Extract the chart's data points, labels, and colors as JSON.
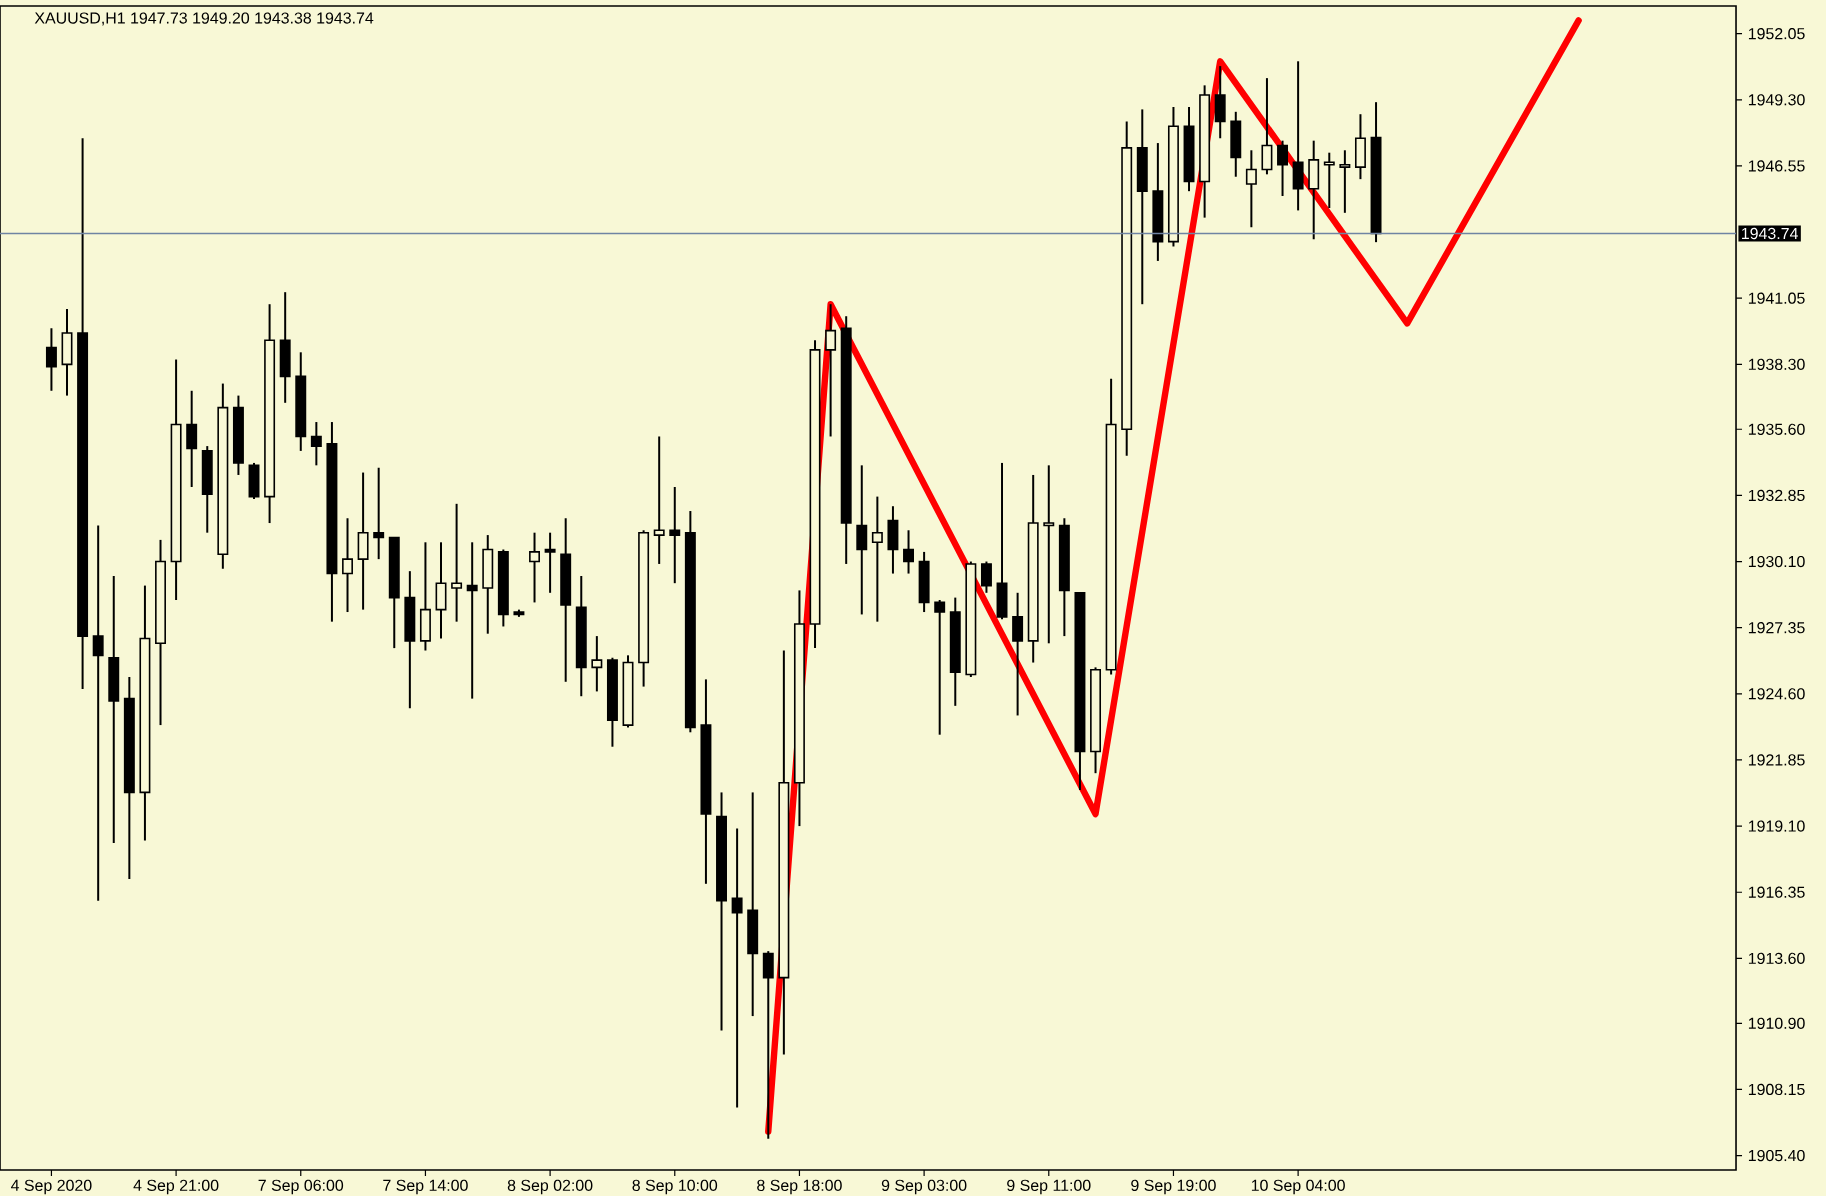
{
  "chart_data": {
    "type": "candlestick",
    "title": "XAUUSD,H1  1947.73 1949.20 1943.38 1943.74",
    "color": "#000000",
    "categories": [
      "4 Sep 2020",
      null,
      null,
      null,
      null,
      null,
      null,
      null,
      "4 Sep 21:00",
      null,
      null,
      null,
      null,
      null,
      null,
      null,
      "7 Sep 06:00",
      null,
      null,
      null,
      null,
      null,
      null,
      null,
      "7 Sep 14:00",
      null,
      null,
      null,
      null,
      null,
      null,
      null,
      "8 Sep 02:00",
      null,
      null,
      null,
      null,
      null,
      null,
      null,
      "8 Sep 10:00",
      null,
      null,
      null,
      null,
      null,
      null,
      null,
      "8 Sep 18:00",
      null,
      null,
      null,
      null,
      null,
      null,
      null,
      "9 Sep 03:00",
      null,
      null,
      null,
      null,
      null,
      null,
      null,
      "9 Sep 11:00",
      null,
      null,
      null,
      null,
      null,
      null,
      null,
      "9 Sep 19:00",
      null,
      null,
      null,
      null,
      null,
      null,
      null,
      "10 Sep 04:00",
      null,
      null,
      null,
      null,
      null,
      null,
      null,
      null,
      null,
      null,
      null,
      null,
      null,
      null,
      null,
      null,
      null,
      null,
      null,
      null,
      null,
      null,
      null,
      null,
      null,
      null,
      null,
      null
    ],
    "ohlc": [
      [
        1939.0,
        1939.8,
        1937.2,
        1938.2
      ],
      [
        1938.3,
        1940.6,
        1937.0,
        1939.6
      ],
      [
        1939.6,
        1947.7,
        1924.8,
        1927.0
      ],
      [
        1927.0,
        1931.6,
        1916.0,
        1926.2
      ],
      [
        1926.1,
        1929.5,
        1918.4,
        1924.3
      ],
      [
        1924.4,
        1925.3,
        1916.9,
        1920.5
      ],
      [
        1920.5,
        1929.1,
        1918.5,
        1926.9
      ],
      [
        1926.7,
        1931.0,
        1923.3,
        1930.1
      ],
      [
        1930.1,
        1938.5,
        1928.5,
        1935.8
      ],
      [
        1935.8,
        1937.2,
        1933.2,
        1934.8
      ],
      [
        1934.7,
        1934.9,
        1931.3,
        1932.9
      ],
      [
        1930.4,
        1937.5,
        1929.8,
        1936.5
      ],
      [
        1936.5,
        1937.0,
        1933.7,
        1934.2
      ],
      [
        1934.1,
        1934.2,
        1932.7,
        1932.8
      ],
      [
        1932.8,
        1940.8,
        1931.7,
        1939.3
      ],
      [
        1939.3,
        1941.3,
        1936.7,
        1937.8
      ],
      [
        1937.8,
        1938.8,
        1934.7,
        1935.3
      ],
      [
        1935.3,
        1935.9,
        1934.1,
        1934.9
      ],
      [
        1935.0,
        1935.9,
        1927.6,
        1929.6
      ],
      [
        1929.6,
        1931.9,
        1928.0,
        1930.2
      ],
      [
        1930.2,
        1933.8,
        1928.1,
        1931.3
      ],
      [
        1931.3,
        1934.0,
        1930.2,
        1931.1
      ],
      [
        1931.1,
        1931.1,
        1926.5,
        1928.6
      ],
      [
        1928.6,
        1929.7,
        1924.0,
        1926.8
      ],
      [
        1926.8,
        1930.9,
        1926.4,
        1928.1
      ],
      [
        1928.1,
        1930.9,
        1926.9,
        1929.2
      ],
      [
        1929.0,
        1932.5,
        1927.6,
        1929.2
      ],
      [
        1929.1,
        1930.9,
        1924.4,
        1928.9
      ],
      [
        1929.0,
        1931.2,
        1927.1,
        1930.6
      ],
      [
        1930.5,
        1930.6,
        1927.4,
        1927.9
      ],
      [
        1928.0,
        1928.1,
        1927.8,
        1927.9
      ],
      [
        1930.1,
        1931.3,
        1928.4,
        1930.5
      ],
      [
        1930.6,
        1931.3,
        1928.8,
        1930.5
      ],
      [
        1930.4,
        1931.9,
        1925.1,
        1928.3
      ],
      [
        1928.2,
        1929.5,
        1924.5,
        1925.7
      ],
      [
        1925.7,
        1927.0,
        1924.7,
        1926.0
      ],
      [
        1926.0,
        1926.1,
        1922.4,
        1923.5
      ],
      [
        1923.3,
        1926.2,
        1923.2,
        1925.9
      ],
      [
        1925.9,
        1931.4,
        1924.9,
        1931.3
      ],
      [
        1931.2,
        1935.3,
        1930.0,
        1931.4
      ],
      [
        1931.4,
        1933.2,
        1929.2,
        1931.2
      ],
      [
        1931.3,
        1932.2,
        1923.0,
        1923.2
      ],
      [
        1923.3,
        1925.2,
        1916.7,
        1919.6
      ],
      [
        1919.5,
        1920.5,
        1910.6,
        1916.0
      ],
      [
        1916.1,
        1919.0,
        1907.4,
        1915.5
      ],
      [
        1915.6,
        1920.5,
        1911.2,
        1913.8
      ],
      [
        1913.8,
        1913.9,
        1906.1,
        1912.8
      ],
      [
        1912.8,
        1926.4,
        1909.6,
        1920.9
      ],
      [
        1920.9,
        1928.9,
        1919.1,
        1927.5
      ],
      [
        1927.5,
        1939.3,
        1926.5,
        1938.9
      ],
      [
        1938.9,
        1940.8,
        1935.3,
        1939.7
      ],
      [
        1939.8,
        1940.3,
        1930.0,
        1931.7
      ],
      [
        1931.6,
        1934.1,
        1927.9,
        1930.6
      ],
      [
        1930.9,
        1932.8,
        1927.6,
        1931.3
      ],
      [
        1931.8,
        1932.4,
        1929.6,
        1930.6
      ],
      [
        1930.6,
        1931.4,
        1929.6,
        1930.1
      ],
      [
        1930.1,
        1930.5,
        1928.0,
        1928.4
      ],
      [
        1928.4,
        1928.5,
        1922.9,
        1928.0
      ],
      [
        1928.0,
        1928.6,
        1924.1,
        1925.5
      ],
      [
        1925.4,
        1930.1,
        1925.3,
        1930.0
      ],
      [
        1930.0,
        1930.1,
        1928.8,
        1929.1
      ],
      [
        1929.2,
        1934.2,
        1927.7,
        1927.8
      ],
      [
        1927.8,
        1928.8,
        1923.7,
        1926.8
      ],
      [
        1926.8,
        1933.7,
        1925.9,
        1931.7
      ],
      [
        1931.6,
        1934.1,
        1926.7,
        1931.7
      ],
      [
        1931.6,
        1931.9,
        1927.0,
        1928.9
      ],
      [
        1928.8,
        1928.8,
        1920.6,
        1922.2
      ],
      [
        1922.2,
        1925.7,
        1921.3,
        1925.6
      ],
      [
        1925.6,
        1937.7,
        1925.4,
        1935.8
      ],
      [
        1935.6,
        1948.4,
        1934.5,
        1947.3
      ],
      [
        1947.3,
        1948.9,
        1940.8,
        1945.5
      ],
      [
        1945.5,
        1947.5,
        1942.6,
        1943.4
      ],
      [
        1943.4,
        1949.0,
        1943.2,
        1948.2
      ],
      [
        1948.2,
        1949.0,
        1945.5,
        1945.9
      ],
      [
        1945.9,
        1949.9,
        1944.4,
        1949.5
      ],
      [
        1949.5,
        1950.7,
        1947.7,
        1948.4
      ],
      [
        1948.4,
        1948.8,
        1946.1,
        1946.9
      ],
      [
        1945.8,
        1947.2,
        1944.0,
        1946.4
      ],
      [
        1946.4,
        1950.2,
        1946.2,
        1947.4
      ],
      [
        1947.4,
        1947.6,
        1945.3,
        1946.6
      ],
      [
        1946.7,
        1950.9,
        1944.7,
        1945.6
      ],
      [
        1945.6,
        1947.6,
        1943.5,
        1946.8
      ],
      [
        1946.6,
        1947.1,
        1944.8,
        1946.7
      ],
      [
        1946.5,
        1947.2,
        1944.6,
        1946.6
      ],
      [
        1946.5,
        1948.7,
        1946.0,
        1947.7
      ],
      [
        1947.73,
        1949.2,
        1943.38,
        1943.74
      ],
      null,
      null,
      null,
      null,
      null,
      null,
      null,
      null,
      null,
      null,
      null,
      null,
      null,
      null,
      null,
      null,
      null,
      null,
      null,
      null,
      null,
      null,
      null
    ],
    "series": [
      {
        "type": "line",
        "color": "#ff0000",
        "values": [
          null,
          null,
          null,
          null,
          null,
          null,
          null,
          null,
          null,
          null,
          null,
          null,
          null,
          null,
          null,
          null,
          null,
          null,
          null,
          null,
          null,
          null,
          null,
          null,
          null,
          null,
          null,
          null,
          null,
          null,
          null,
          null,
          null,
          null,
          null,
          null,
          null,
          null,
          null,
          null,
          null,
          null,
          null,
          null,
          null,
          null,
          1906.4,
          null,
          null,
          null,
          1940.8,
          null,
          null,
          null,
          null,
          null,
          null,
          null,
          null,
          null,
          null,
          null,
          null,
          null,
          null,
          null,
          null,
          1919.6,
          null,
          null,
          null,
          null,
          null,
          null,
          null,
          1950.9,
          null,
          null,
          null,
          null,
          null,
          null,
          null,
          null,
          null,
          null,
          null,
          1940.0,
          null,
          null,
          null,
          null,
          null,
          null,
          null,
          null,
          null,
          null,
          1952.6,
          null,
          null,
          null,
          null,
          null,
          null,
          null,
          null,
          null,
          null
        ]
      }
    ],
    "ylim": [
      1904.8,
      1953.2
    ],
    "yticks": [
      {
        "value": 1905.4,
        "label": "1905.40"
      },
      {
        "value": 1908.15,
        "label": "1908.15"
      },
      {
        "value": 1910.9,
        "label": "1910.90"
      },
      {
        "value": 1913.6,
        "label": "1913.60"
      },
      {
        "value": 1916.35,
        "label": "1916.35"
      },
      {
        "value": 1919.1,
        "label": "1919.10"
      },
      {
        "value": 1921.85,
        "label": "1921.85"
      },
      {
        "value": 1924.6,
        "label": "1924.60"
      },
      {
        "value": 1927.35,
        "label": "1927.35"
      },
      {
        "value": 1930.1,
        "label": "1930.10"
      },
      {
        "value": 1932.85,
        "label": "1932.85"
      },
      {
        "value": 1935.6,
        "label": "1935.60"
      },
      {
        "value": 1938.3,
        "label": "1938.30"
      },
      {
        "value": 1941.05,
        "label": "1941.05"
      },
      {
        "value": 1946.55,
        "label": "1946.55"
      },
      {
        "value": 1949.3,
        "label": "1949.30"
      },
      {
        "value": 1952.05,
        "label": "1952.05"
      }
    ],
    "ref_lines": [
      {
        "axis": "y",
        "value": 1943.74,
        "label": "1943.74",
        "color": "#6f84a3"
      }
    ]
  }
}
